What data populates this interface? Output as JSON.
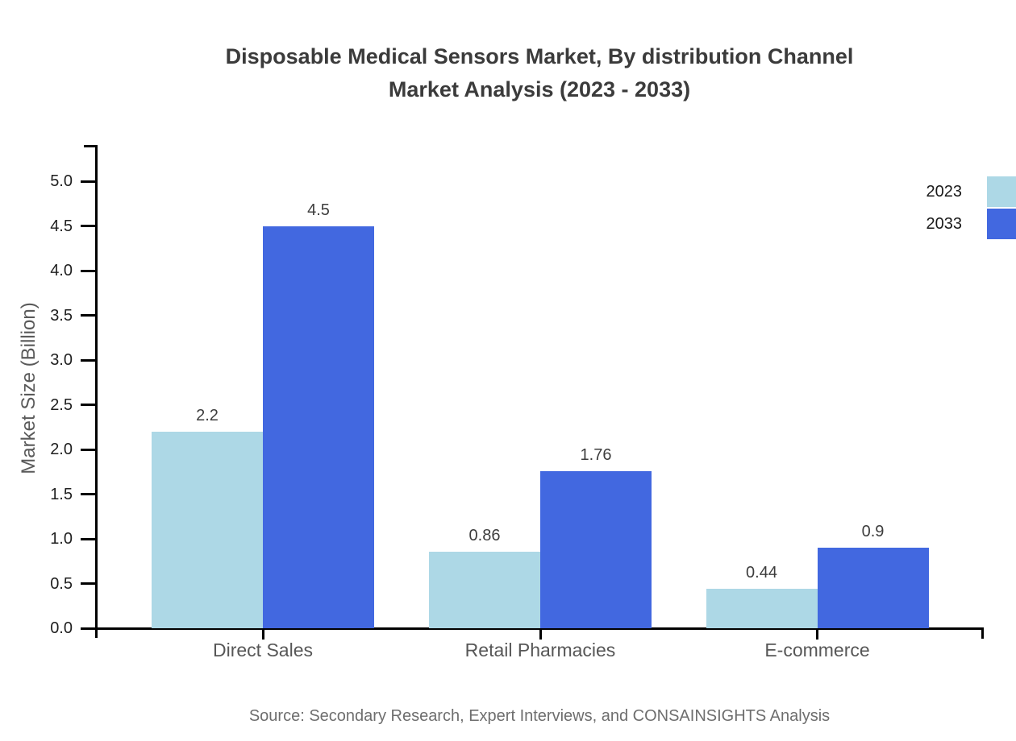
{
  "title": {
    "line1": "Disposable Medical Sensors Market, By distribution Channel",
    "line2": "Market Analysis (2023 - 2033)"
  },
  "source": "Source: Secondary Research, Expert Interviews, and CONSAINSIGHTS Analysis",
  "chart_data": {
    "type": "bar",
    "title": "Disposable Medical Sensors Market, By distribution Channel Market Analysis (2023 - 2033)",
    "categories": [
      "Direct Sales",
      "Retail Pharmacies",
      "E-commerce"
    ],
    "series": [
      {
        "name": "2023",
        "color": "#ADD8E6",
        "values": [
          2.2,
          0.86,
          0.44
        ]
      },
      {
        "name": "2033",
        "color": "#4268E0",
        "values": [
          4.5,
          1.76,
          0.9
        ]
      }
    ],
    "xlabel": "",
    "ylabel": "Market Size (Billion)",
    "ylim": [
      0.0,
      5.0
    ],
    "y_ticks": [
      0.0,
      0.5,
      1.0,
      1.5,
      2.0,
      2.5,
      3.0,
      3.5,
      4.0,
      4.5,
      5.0
    ],
    "grid": false,
    "legend_position": "top-right",
    "value_labels_shown": true,
    "axis_color": "#000000"
  }
}
